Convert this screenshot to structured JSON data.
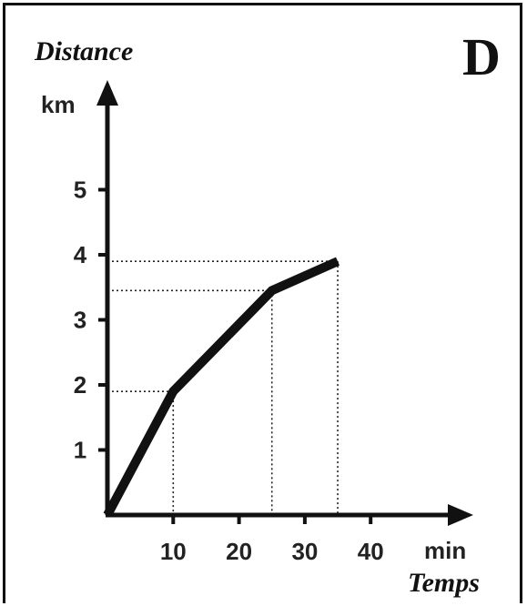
{
  "panel": {
    "letter": "D"
  },
  "chart_data": {
    "type": "line",
    "x_title": "Temps",
    "y_title": "Distance",
    "x_unit": "min",
    "y_unit": "km",
    "x_ticks": [
      10,
      20,
      30,
      40
    ],
    "y_ticks": [
      1,
      2,
      3,
      4,
      5
    ],
    "xlim": [
      0,
      55
    ],
    "ylim": [
      0,
      6.5
    ],
    "grid": false,
    "series": [
      {
        "x": [
          0,
          10,
          25,
          35
        ],
        "y": [
          0,
          1.9,
          3.45,
          3.9
        ]
      }
    ],
    "reference_lines": [
      {
        "x": 10,
        "y": 1.9
      },
      {
        "x": 25,
        "y": 3.45
      },
      {
        "x": 35,
        "y": 3.9
      }
    ]
  }
}
